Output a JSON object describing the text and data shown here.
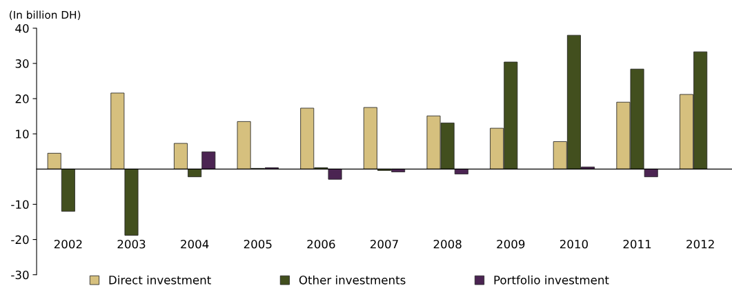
{
  "chart_data": {
    "type": "bar",
    "ylabel": "(In billion DH)",
    "categories": [
      "2002",
      "2003",
      "2004",
      "2005",
      "2006",
      "2007",
      "2008",
      "2009",
      "2010",
      "2011",
      "2012"
    ],
    "series": [
      {
        "name": "Direct investment",
        "color": "#d6c07e",
        "values": [
          4.5,
          21.6,
          7.3,
          13.5,
          17.3,
          17.5,
          15.1,
          11.6,
          7.8,
          19.0,
          21.2
        ]
      },
      {
        "name": "Other investments",
        "color": "#424f1e",
        "values": [
          -12.0,
          -18.8,
          -2.2,
          0.2,
          0.4,
          -0.4,
          13.1,
          30.4,
          38.0,
          28.4,
          33.3
        ]
      },
      {
        "name": "Portfolio investment",
        "color": "#4b2452",
        "values": [
          null,
          null,
          4.9,
          0.4,
          -2.9,
          -0.8,
          -1.4,
          null,
          0.6,
          -2.2,
          null
        ]
      }
    ],
    "ylim": [
      -30,
      40
    ],
    "yticks": [
      -30,
      -20,
      -10,
      10,
      20,
      30,
      40
    ],
    "grid": false,
    "legend": "bottom"
  }
}
